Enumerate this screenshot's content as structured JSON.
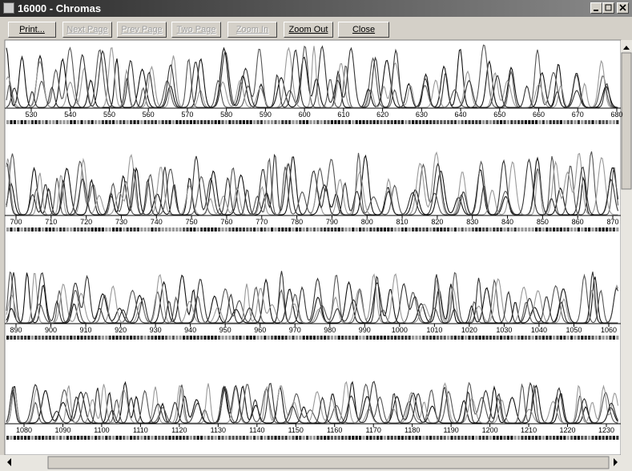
{
  "window": {
    "title": "16000 - Chromas"
  },
  "toolbar": {
    "buttons": [
      {
        "label": "Print...",
        "enabled": true
      },
      {
        "label": "Next Page",
        "enabled": false
      },
      {
        "label": "Prev Page",
        "enabled": false
      },
      {
        "label": "Two Page",
        "enabled": false
      },
      {
        "label": "Zoom In",
        "enabled": false
      },
      {
        "label": "Zoom Out",
        "enabled": true
      },
      {
        "label": "Close",
        "enabled": true
      }
    ]
  },
  "rows": [
    {
      "positions": [
        530,
        540,
        550,
        560,
        570,
        580,
        590,
        600,
        610,
        620,
        630,
        640,
        650,
        660,
        670,
        680
      ]
    },
    {
      "positions": [
        700,
        710,
        720,
        730,
        740,
        750,
        760,
        770,
        780,
        790,
        800,
        810,
        820,
        830,
        840,
        850,
        860,
        870
      ]
    },
    {
      "positions": [
        890,
        900,
        910,
        920,
        930,
        940,
        950,
        960,
        970,
        980,
        990,
        1000,
        1010,
        1020,
        1030,
        1040,
        1050,
        1060
      ]
    },
    {
      "positions": [
        1080,
        1090,
        1100,
        1110,
        1120,
        1130,
        1140,
        1150,
        1160,
        1170,
        1180,
        1190,
        1200,
        1210,
        1220,
        1230
      ]
    }
  ]
}
